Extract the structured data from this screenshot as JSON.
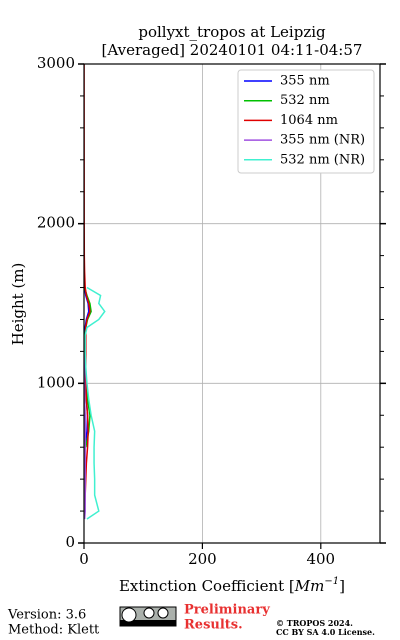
{
  "chart_data": {
    "type": "line",
    "title": [
      "pollyxt_tropos at Leipzig",
      "[Averaged] 20240101 04:11-04:57"
    ],
    "xlabel": {
      "text": "Extinction Coefficient [",
      "unit": "Mm",
      "exponent": "−1",
      "close": "]"
    },
    "ylabel": "Height (m)",
    "y": [
      150,
      200,
      300,
      400,
      500,
      600,
      700,
      800,
      900,
      1000,
      1100,
      1200,
      1300,
      1350,
      1400,
      1450,
      1500,
      1550,
      1600,
      1700,
      1800,
      2000,
      2500,
      3000
    ],
    "series": [
      {
        "name": "355 nm",
        "color": "#0000ff",
        "values": [
          null,
          null,
          null,
          null,
          null,
          2,
          5,
          6,
          4,
          2,
          2,
          2,
          2,
          2,
          4,
          8,
          7,
          3,
          1,
          null,
          null,
          null,
          null,
          null
        ]
      },
      {
        "name": "532 nm",
        "color": "#00c000",
        "values": [
          null,
          null,
          null,
          null,
          null,
          3,
          8,
          10,
          6,
          3,
          2,
          2,
          2,
          3,
          6,
          12,
          10,
          5,
          1,
          null,
          null,
          null,
          null,
          null
        ]
      },
      {
        "name": "1064 nm",
        "color": "#e00000",
        "values": [
          null,
          1,
          2,
          3,
          4,
          6,
          7,
          6,
          4,
          3,
          3,
          3,
          3,
          3,
          5,
          10,
          8,
          4,
          2,
          1,
          0.5,
          0.3,
          0.2,
          0.1
        ]
      },
      {
        "name": "355 nm (NR)",
        "color": "#a050e0",
        "values": [
          1,
          2,
          2,
          2,
          2,
          2,
          2,
          2,
          1,
          1,
          1,
          1,
          1,
          null,
          null,
          null,
          null,
          null,
          null,
          null,
          null,
          null,
          null,
          null
        ]
      },
      {
        "name": "532 nm (NR)",
        "color": "#40f0d0",
        "values": [
          5,
          25,
          18,
          18,
          17,
          17,
          18,
          12,
          8,
          5,
          3,
          2,
          2,
          5,
          25,
          35,
          25,
          28,
          5,
          null,
          null,
          null,
          null,
          null
        ]
      }
    ],
    "xlim": [
      0,
      500
    ],
    "xticks": [
      0,
      200,
      400
    ],
    "ylim": [
      0,
      3000
    ],
    "yticks": [
      0,
      1000,
      2000,
      3000
    ],
    "yminorticks": [
      200,
      400,
      600,
      800,
      1200,
      1400,
      1600,
      1800,
      2200,
      2400,
      2600,
      2800
    ],
    "grid": true,
    "legend": "upper right"
  },
  "footer": {
    "version": "Version: 3.6",
    "method": "Method: Klett",
    "notice": [
      "Preliminary",
      "Results."
    ],
    "copyright": [
      "© TROPOS 2024.",
      "CC BY SA 4.0 License."
    ]
  }
}
